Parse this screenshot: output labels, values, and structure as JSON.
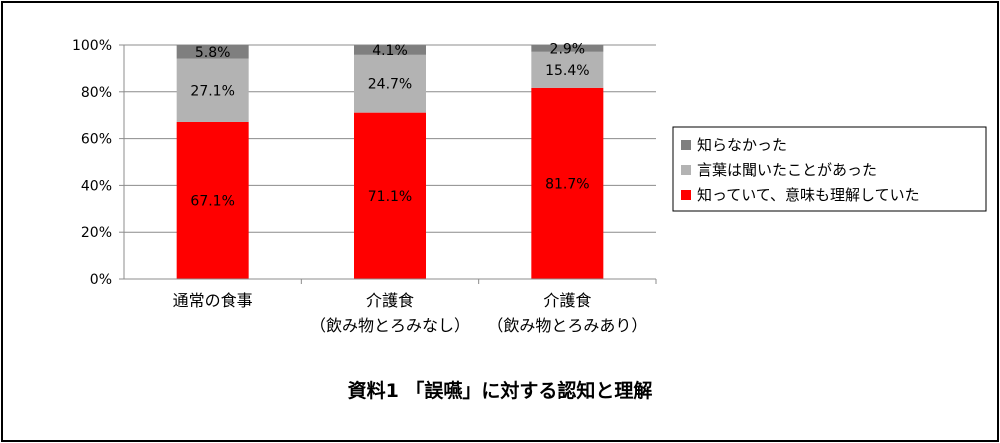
{
  "chart_data": {
    "type": "bar",
    "stacked": true,
    "percent_stacked": true,
    "categories": [
      [
        "通常の食事"
      ],
      [
        "介護食",
        "（飲み物とろみなし）"
      ],
      [
        "介護食",
        "（飲み物とろみあり）"
      ]
    ],
    "series": [
      {
        "name": "知っていて、意味も理解していた",
        "values": [
          67.1,
          71.1,
          81.7
        ],
        "labels": [
          "67.1%",
          "71.1%",
          "81.7%"
        ],
        "color": "#ff0000"
      },
      {
        "name": "言葉は聞いたことがあった",
        "values": [
          27.1,
          24.7,
          15.4
        ],
        "labels": [
          "27.1%",
          "24.7%",
          "15.4%"
        ],
        "color": "#b3b3b3"
      },
      {
        "name": "知らなかった",
        "values": [
          5.8,
          4.1,
          2.9
        ],
        "labels": [
          "5.8%",
          "4.1%",
          "2.9%"
        ],
        "color": "#7f7f7f"
      }
    ],
    "yticks": [
      "0%",
      "20%",
      "40%",
      "60%",
      "80%",
      "100%"
    ],
    "ylim": [
      0,
      100
    ],
    "grid": true,
    "legend_position": "right",
    "legend_order": [
      "知らなかった",
      "言葉は聞いたことがあった",
      "知っていて、意味も理解していた"
    ]
  },
  "caption": "資料1 「誤嚥」に対する認知と理解"
}
